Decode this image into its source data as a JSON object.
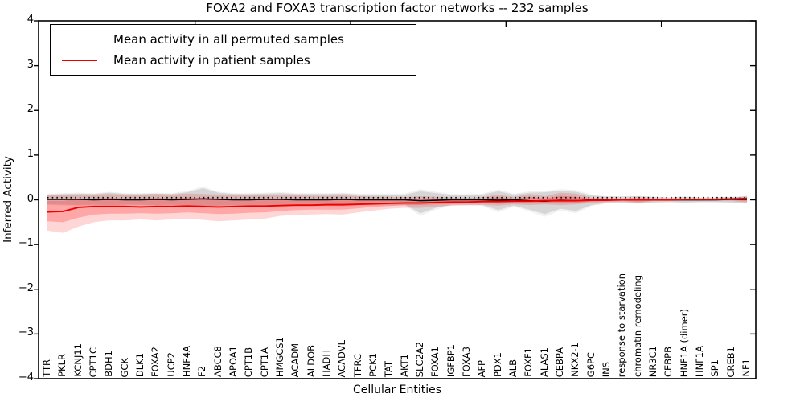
{
  "chart_data": {
    "type": "line",
    "title": "FOXA2 and FOXA3 transcription factor networks -- 232 samples",
    "xlabel": "Cellular Entities",
    "ylabel": "Inferred Activity",
    "ylim": [
      -4,
      4
    ],
    "yticks": [
      4,
      3,
      2,
      1,
      0,
      -1,
      -2,
      -3,
      -4
    ],
    "ytick_labels": [
      "4",
      "3",
      "2",
      "1",
      "0",
      "−1",
      "−2",
      "−3",
      "−4"
    ],
    "top_tick_indices": [
      9.5,
      19.5,
      29.5,
      39.5
    ],
    "grid": false,
    "legend_position": "upper left",
    "background_color": "#ffffff",
    "categories": [
      "TTR",
      "PKLR",
      "KCNJ11",
      "CPT1C",
      "BDH1",
      "GCK",
      "DLK1",
      "FOXA2",
      "UCP2",
      "HNF4A",
      "F2",
      "ABCC8",
      "APOA1",
      "CPT1B",
      "CPT1A",
      "HMGCS1",
      "ACADM",
      "ALDOB",
      "HADH",
      "ACADVL",
      "TFRC",
      "PCK1",
      "TAT",
      "AKT1",
      "SLC2A2",
      "FOXA1",
      "IGFBP1",
      "FOXA3",
      "AFP",
      "PDX1",
      "ALB",
      "FOXF1",
      "ALAS1",
      "CEBPA",
      "NKX2-1",
      "G6PC",
      "INS",
      "response to starvation",
      "chromatin remodeling",
      "NR3C1",
      "CEBPB",
      "HNF1A (dimer)",
      "HNF1A",
      "SP1",
      "CREB1",
      "NF1"
    ],
    "series": [
      {
        "name": "Mean activity in all permuted samples",
        "color": "#000000",
        "values": [
          0.01,
          0.01,
          0.01,
          0.0,
          0.01,
          0.0,
          0.0,
          0.01,
          0.0,
          0.01,
          0.02,
          0.01,
          0.0,
          0.0,
          0.01,
          0.01,
          0.0,
          0.0,
          0.0,
          0.01,
          0.0,
          0.0,
          0.0,
          0.0,
          -0.02,
          -0.01,
          0.0,
          0.0,
          0.0,
          -0.01,
          0.0,
          -0.02,
          -0.03,
          -0.01,
          -0.02,
          0.0,
          0.0,
          0.0,
          0.0,
          0.0,
          0.0,
          0.0,
          0.0,
          0.0,
          0.01,
          0.01
        ]
      },
      {
        "name": "Mean activity in patient samples",
        "color": "#f00000",
        "values": [
          -0.27,
          -0.26,
          -0.17,
          -0.15,
          -0.15,
          -0.15,
          -0.16,
          -0.15,
          -0.15,
          -0.14,
          -0.15,
          -0.16,
          -0.15,
          -0.14,
          -0.14,
          -0.13,
          -0.12,
          -0.12,
          -0.11,
          -0.11,
          -0.1,
          -0.09,
          -0.08,
          -0.07,
          -0.07,
          -0.06,
          -0.05,
          -0.05,
          -0.04,
          -0.04,
          -0.03,
          -0.03,
          -0.02,
          -0.02,
          -0.02,
          -0.01,
          -0.01,
          0.0,
          0.0,
          0.0,
          0.0,
          0.01,
          0.01,
          0.01,
          0.02,
          0.03
        ]
      }
    ],
    "bands": [
      {
        "name": "permuted-band-halo",
        "color": "rgba(0,0,0,0.055)",
        "top": [
          0.14,
          0.15,
          0.16,
          0.15,
          0.18,
          0.15,
          0.15,
          0.16,
          0.15,
          0.2,
          0.3,
          0.18,
          0.15,
          0.15,
          0.16,
          0.17,
          0.15,
          0.15,
          0.15,
          0.16,
          0.14,
          0.14,
          0.14,
          0.14,
          0.24,
          0.18,
          0.13,
          0.13,
          0.14,
          0.23,
          0.14,
          0.19,
          0.2,
          0.24,
          0.22,
          0.12,
          0.08,
          0.08,
          0.09,
          0.07,
          0.06,
          0.07,
          0.06,
          0.06,
          0.07,
          0.08
        ],
        "bottom": [
          -0.12,
          -0.13,
          -0.14,
          -0.13,
          -0.14,
          -0.13,
          -0.13,
          -0.14,
          -0.13,
          -0.15,
          -0.19,
          -0.15,
          -0.14,
          -0.14,
          -0.14,
          -0.15,
          -0.14,
          -0.14,
          -0.14,
          -0.15,
          -0.13,
          -0.13,
          -0.13,
          -0.13,
          -0.36,
          -0.22,
          -0.13,
          -0.13,
          -0.14,
          -0.28,
          -0.15,
          -0.26,
          -0.38,
          -0.24,
          -0.3,
          -0.14,
          -0.08,
          -0.08,
          -0.09,
          -0.07,
          -0.06,
          -0.07,
          -0.06,
          -0.06,
          -0.07,
          -0.08
        ]
      },
      {
        "name": "permuted-band",
        "color": "rgba(0,0,0,0.11)",
        "top": [
          0.12,
          0.13,
          0.14,
          0.13,
          0.16,
          0.13,
          0.13,
          0.14,
          0.13,
          0.17,
          0.26,
          0.16,
          0.13,
          0.13,
          0.14,
          0.15,
          0.13,
          0.13,
          0.13,
          0.14,
          0.12,
          0.12,
          0.12,
          0.12,
          0.19,
          0.15,
          0.11,
          0.11,
          0.12,
          0.19,
          0.12,
          0.16,
          0.17,
          0.2,
          0.18,
          0.1,
          0.07,
          0.07,
          0.08,
          0.06,
          0.05,
          0.06,
          0.05,
          0.05,
          0.06,
          0.07
        ],
        "bottom": [
          -0.1,
          -0.11,
          -0.12,
          -0.11,
          -0.12,
          -0.11,
          -0.11,
          -0.12,
          -0.11,
          -0.13,
          -0.16,
          -0.13,
          -0.12,
          -0.12,
          -0.12,
          -0.13,
          -0.12,
          -0.12,
          -0.12,
          -0.13,
          -0.11,
          -0.11,
          -0.11,
          -0.11,
          -0.3,
          -0.18,
          -0.11,
          -0.11,
          -0.12,
          -0.23,
          -0.13,
          -0.22,
          -0.32,
          -0.2,
          -0.25,
          -0.12,
          -0.07,
          -0.07,
          -0.08,
          -0.06,
          -0.05,
          -0.06,
          -0.05,
          -0.05,
          -0.06,
          -0.07
        ]
      },
      {
        "name": "patient-band-outer",
        "color": "rgba(255,0,0,0.16)",
        "top": [
          0.1,
          0.1,
          0.12,
          0.12,
          0.13,
          0.12,
          0.12,
          0.13,
          0.12,
          0.14,
          0.13,
          0.12,
          0.12,
          0.11,
          0.11,
          0.1,
          0.1,
          0.09,
          0.09,
          0.1,
          0.08,
          0.07,
          0.07,
          0.06,
          0.08,
          0.07,
          0.05,
          0.05,
          0.06,
          0.12,
          0.06,
          0.13,
          0.08,
          0.16,
          0.14,
          0.05,
          0.03,
          0.03,
          0.06,
          0.02,
          0.02,
          0.03,
          0.03,
          0.03,
          0.04,
          0.09
        ],
        "bottom": [
          -0.69,
          -0.74,
          -0.6,
          -0.5,
          -0.46,
          -0.46,
          -0.44,
          -0.46,
          -0.44,
          -0.42,
          -0.45,
          -0.48,
          -0.46,
          -0.44,
          -0.42,
          -0.36,
          -0.34,
          -0.33,
          -0.32,
          -0.33,
          -0.28,
          -0.24,
          -0.2,
          -0.18,
          -0.18,
          -0.15,
          -0.13,
          -0.12,
          -0.11,
          -0.13,
          -0.1,
          -0.12,
          -0.1,
          -0.12,
          -0.1,
          -0.07,
          -0.05,
          -0.04,
          -0.07,
          -0.03,
          -0.03,
          -0.03,
          -0.03,
          -0.03,
          -0.03,
          -0.06
        ]
      },
      {
        "name": "patient-band-inner",
        "color": "rgba(255,0,0,0.22)",
        "top": [
          -0.02,
          -0.02,
          0.02,
          0.03,
          0.04,
          0.03,
          0.03,
          0.04,
          0.03,
          0.05,
          0.04,
          0.03,
          0.03,
          0.03,
          0.03,
          0.03,
          0.03,
          0.02,
          0.02,
          0.03,
          0.02,
          0.02,
          0.02,
          0.01,
          0.02,
          0.02,
          0.01,
          0.01,
          0.02,
          0.06,
          0.02,
          0.07,
          0.03,
          0.09,
          0.07,
          0.02,
          0.01,
          0.01,
          0.03,
          0.01,
          0.01,
          0.02,
          0.02,
          0.02,
          0.02,
          0.06
        ],
        "bottom": [
          -0.48,
          -0.5,
          -0.4,
          -0.33,
          -0.31,
          -0.31,
          -0.3,
          -0.31,
          -0.3,
          -0.28,
          -0.3,
          -0.32,
          -0.31,
          -0.29,
          -0.28,
          -0.25,
          -0.23,
          -0.22,
          -0.22,
          -0.22,
          -0.19,
          -0.16,
          -0.14,
          -0.12,
          -0.12,
          -0.1,
          -0.09,
          -0.08,
          -0.07,
          -0.09,
          -0.07,
          -0.08,
          -0.06,
          -0.08,
          -0.07,
          -0.04,
          -0.03,
          -0.02,
          -0.04,
          -0.02,
          -0.02,
          -0.02,
          -0.02,
          -0.01,
          -0.01,
          -0.03
        ]
      }
    ],
    "reference_line": {
      "value": 0.05,
      "style": "dotted",
      "color": "#000000"
    }
  }
}
